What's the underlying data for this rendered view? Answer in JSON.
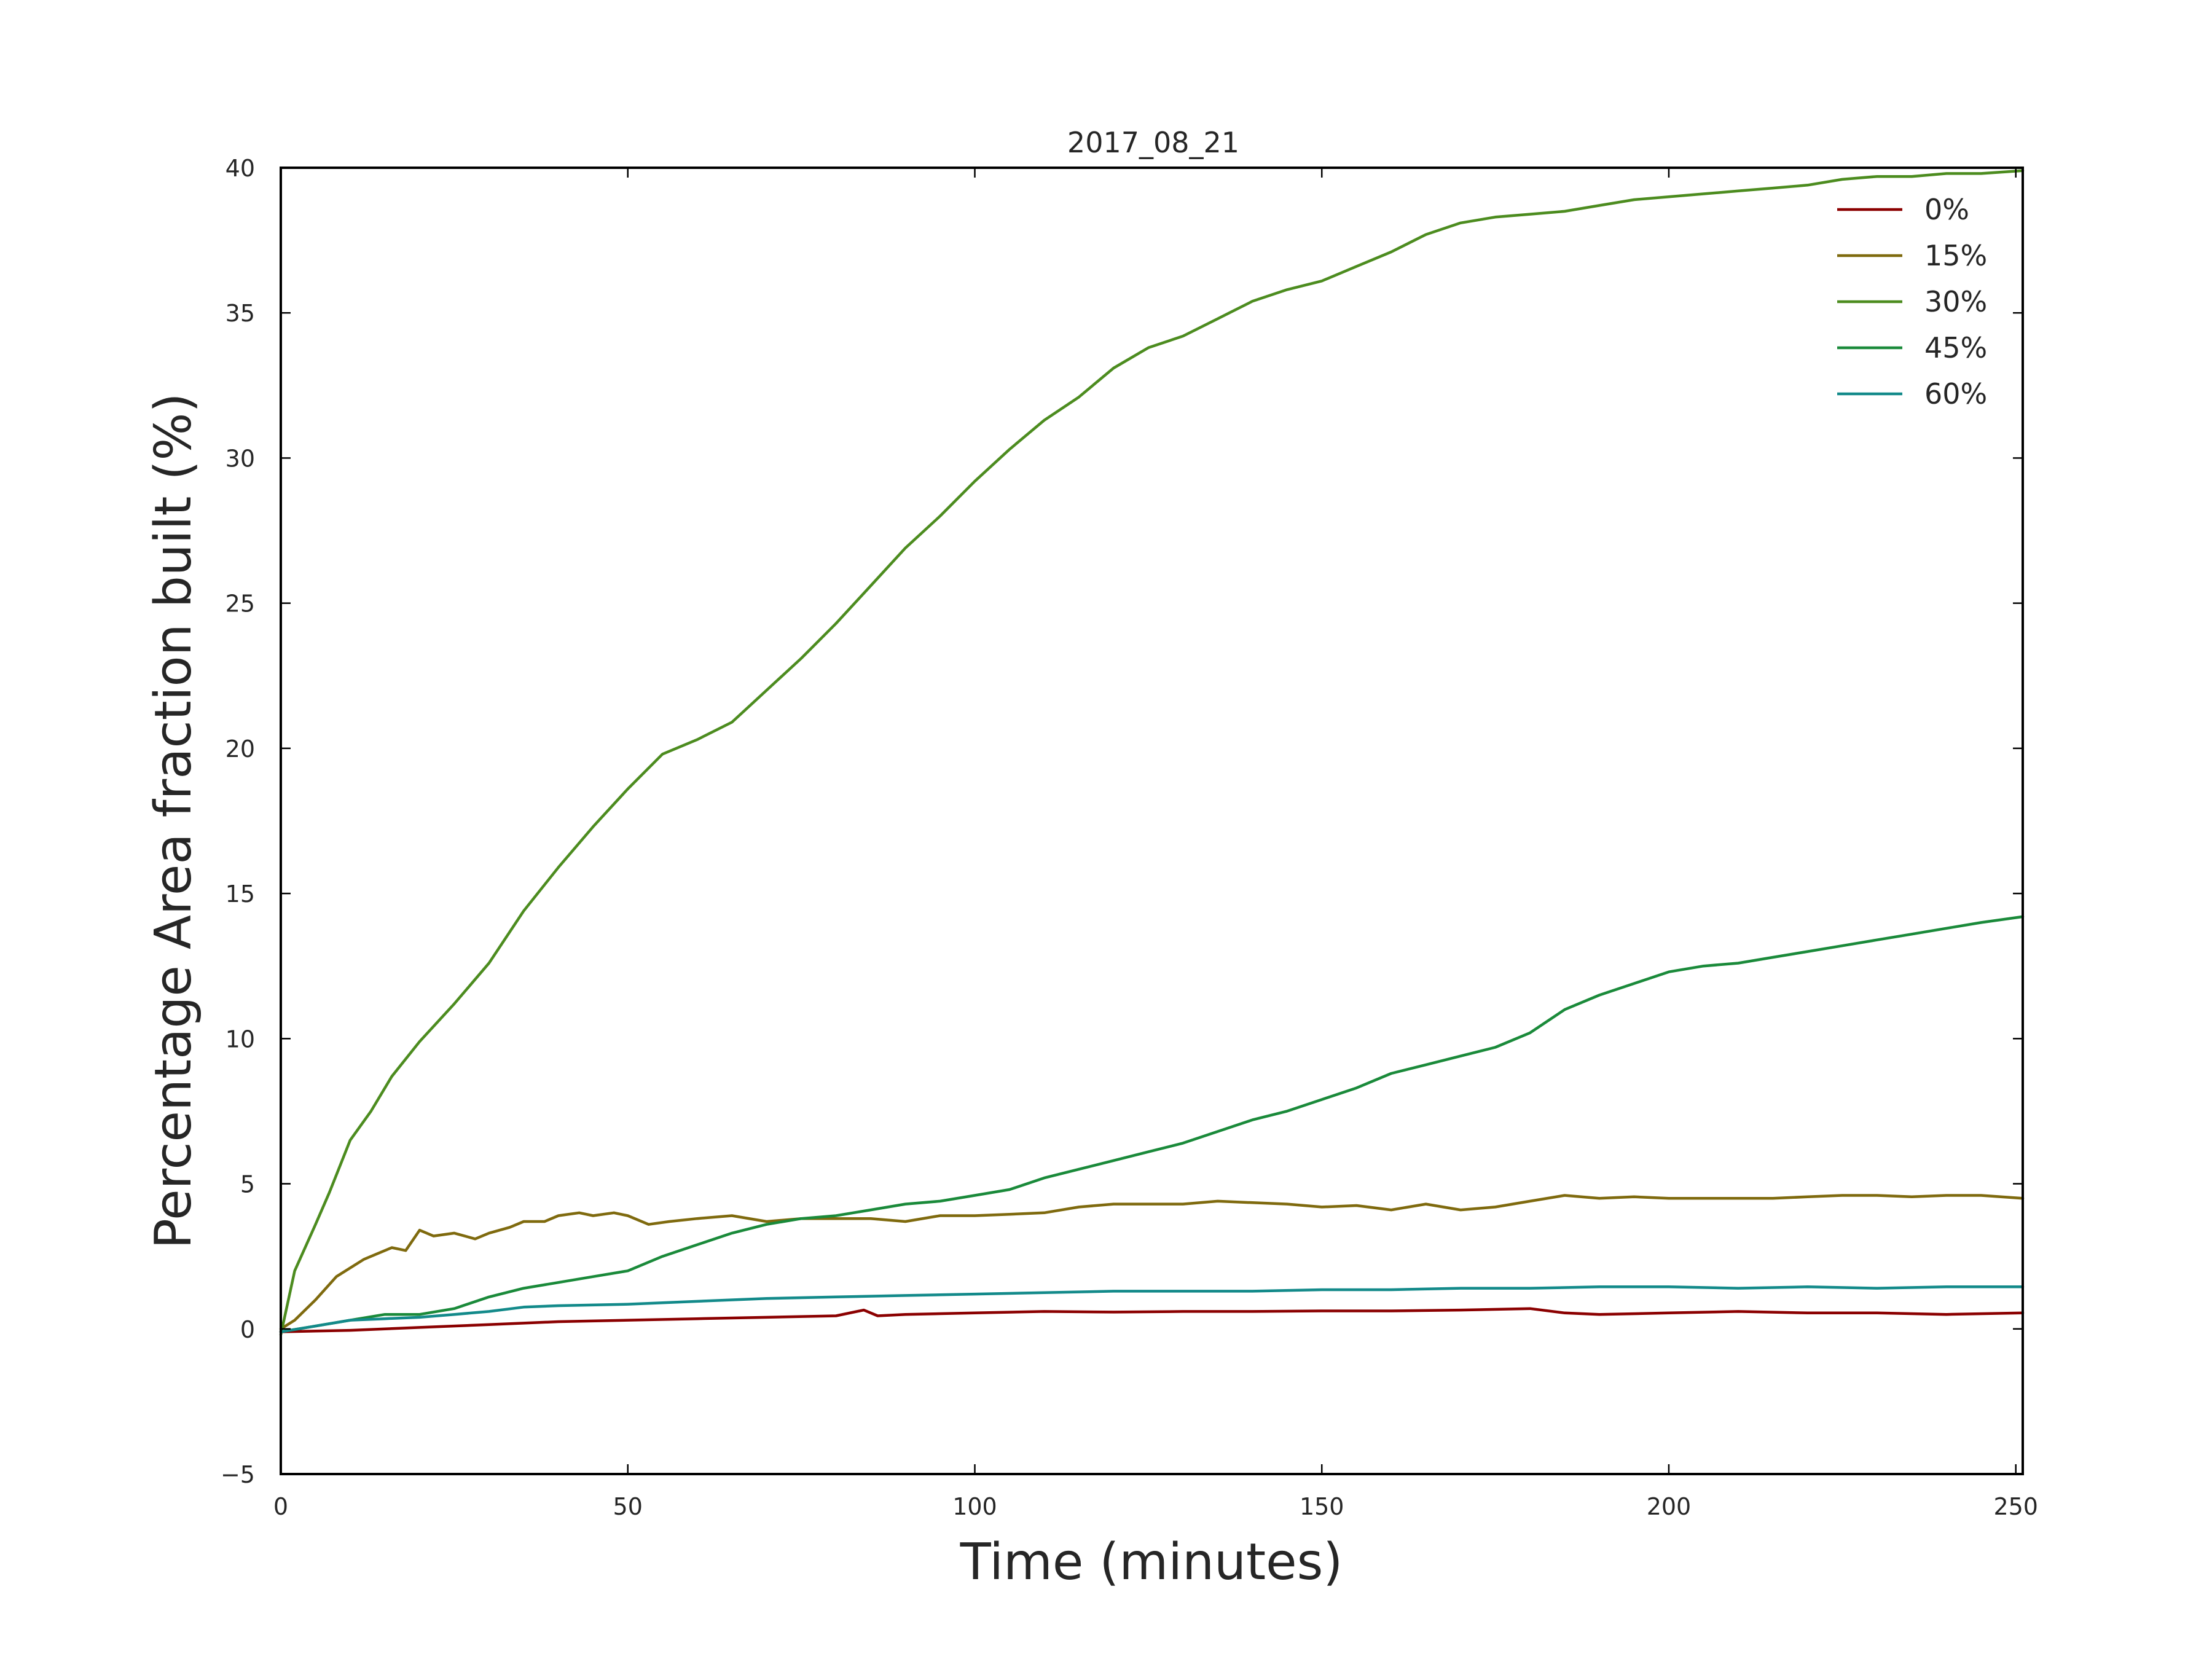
{
  "chart_data": {
    "type": "line",
    "title": "2017_08_21",
    "xlabel": "Time (minutes)",
    "ylabel": "Percentage Area fraction built (%)",
    "xlim": [
      0,
      251
    ],
    "ylim": [
      -5,
      40
    ],
    "xticks": [
      0,
      50,
      100,
      150,
      200,
      250
    ],
    "xtick_labels": [
      "0",
      "50",
      "100",
      "150",
      "200",
      "250"
    ],
    "yticks": [
      -5,
      0,
      5,
      10,
      15,
      20,
      25,
      30,
      35,
      40
    ],
    "ytick_labels": [
      "−5",
      "0",
      "5",
      "10",
      "15",
      "20",
      "25",
      "30",
      "35",
      "40"
    ],
    "grid": false,
    "legend_position": "top-right",
    "series": [
      {
        "name": "0%",
        "color": "#8b0000",
        "x": [
          0,
          10,
          20,
          30,
          40,
          50,
          60,
          70,
          80,
          84,
          86,
          90,
          100,
          110,
          120,
          130,
          140,
          150,
          160,
          170,
          180,
          185,
          190,
          200,
          210,
          220,
          230,
          240,
          251
        ],
        "y": [
          -0.1,
          -0.05,
          0.05,
          0.15,
          0.25,
          0.3,
          0.35,
          0.4,
          0.45,
          0.65,
          0.45,
          0.5,
          0.55,
          0.6,
          0.58,
          0.6,
          0.6,
          0.62,
          0.62,
          0.65,
          0.7,
          0.55,
          0.5,
          0.55,
          0.6,
          0.55,
          0.55,
          0.5,
          0.55
        ]
      },
      {
        "name": "15%",
        "color": "#7f6a0e",
        "x": [
          0,
          2,
          5,
          8,
          12,
          16,
          18,
          20,
          22,
          25,
          28,
          30,
          33,
          35,
          38,
          40,
          43,
          45,
          48,
          50,
          53,
          56,
          60,
          65,
          70,
          75,
          80,
          85,
          90,
          95,
          100,
          105,
          110,
          115,
          120,
          125,
          130,
          135,
          140,
          145,
          150,
          155,
          160,
          165,
          170,
          175,
          180,
          185,
          190,
          195,
          200,
          205,
          210,
          215,
          220,
          225,
          230,
          235,
          240,
          245,
          251
        ],
        "y": [
          0.0,
          0.3,
          1.0,
          1.8,
          2.4,
          2.8,
          2.7,
          3.4,
          3.2,
          3.3,
          3.1,
          3.3,
          3.5,
          3.7,
          3.7,
          3.9,
          4.0,
          3.9,
          4.0,
          3.9,
          3.6,
          3.7,
          3.8,
          3.9,
          3.7,
          3.8,
          3.8,
          3.8,
          3.7,
          3.9,
          3.9,
          3.95,
          4.0,
          4.2,
          4.3,
          4.3,
          4.3,
          4.4,
          4.35,
          4.3,
          4.2,
          4.25,
          4.1,
          4.3,
          4.1,
          4.2,
          4.4,
          4.6,
          4.5,
          4.55,
          4.5,
          4.5,
          4.5,
          4.5,
          4.55,
          4.6,
          4.6,
          4.55,
          4.6,
          4.6,
          4.5
        ]
      },
      {
        "name": "30%",
        "color": "#4c8c1f",
        "x": [
          0,
          2,
          5,
          7,
          10,
          13,
          16,
          20,
          25,
          30,
          35,
          40,
          45,
          50,
          55,
          60,
          65,
          70,
          75,
          80,
          85,
          90,
          95,
          100,
          105,
          110,
          115,
          120,
          125,
          130,
          135,
          140,
          145,
          150,
          155,
          160,
          165,
          170,
          175,
          180,
          185,
          190,
          195,
          200,
          205,
          210,
          215,
          220,
          225,
          230,
          235,
          240,
          245,
          251
        ],
        "y": [
          -0.2,
          2.0,
          3.6,
          4.7,
          6.5,
          7.5,
          8.7,
          9.9,
          11.2,
          12.6,
          14.4,
          15.9,
          17.3,
          18.6,
          19.8,
          20.3,
          20.9,
          22.0,
          23.1,
          24.3,
          25.6,
          26.9,
          28.0,
          29.2,
          30.3,
          31.3,
          32.1,
          33.1,
          33.8,
          34.2,
          34.8,
          35.4,
          35.8,
          36.1,
          36.6,
          37.1,
          37.7,
          38.1,
          38.3,
          38.4,
          38.5,
          38.7,
          38.9,
          39.0,
          39.1,
          39.2,
          39.3,
          39.4,
          39.6,
          39.7,
          39.7,
          39.8,
          39.8,
          39.9
        ]
      },
      {
        "name": "45%",
        "color": "#1a8a3a",
        "x": [
          0,
          5,
          10,
          15,
          20,
          25,
          30,
          35,
          40,
          45,
          50,
          55,
          60,
          65,
          70,
          75,
          80,
          85,
          90,
          95,
          100,
          105,
          110,
          115,
          120,
          125,
          130,
          135,
          140,
          145,
          150,
          155,
          160,
          165,
          170,
          175,
          180,
          185,
          190,
          195,
          200,
          205,
          210,
          215,
          220,
          225,
          230,
          235,
          240,
          245,
          251
        ],
        "y": [
          -0.1,
          0.1,
          0.3,
          0.5,
          0.5,
          0.7,
          1.1,
          1.4,
          1.6,
          1.8,
          2.0,
          2.5,
          2.9,
          3.3,
          3.6,
          3.8,
          3.9,
          4.1,
          4.3,
          4.4,
          4.6,
          4.8,
          5.2,
          5.5,
          5.8,
          6.1,
          6.4,
          6.8,
          7.2,
          7.5,
          7.9,
          8.3,
          8.8,
          9.1,
          9.4,
          9.7,
          10.2,
          11.0,
          11.5,
          11.9,
          12.3,
          12.5,
          12.6,
          12.8,
          13.0,
          13.2,
          13.4,
          13.6,
          13.8,
          14.0,
          14.2
        ]
      },
      {
        "name": "60%",
        "color": "#138a8a",
        "x": [
          0,
          5,
          10,
          15,
          20,
          25,
          30,
          35,
          40,
          50,
          60,
          70,
          80,
          90,
          100,
          110,
          120,
          130,
          140,
          150,
          160,
          170,
          180,
          190,
          200,
          210,
          220,
          230,
          240,
          251
        ],
        "y": [
          -0.1,
          0.1,
          0.3,
          0.35,
          0.4,
          0.5,
          0.6,
          0.75,
          0.8,
          0.85,
          0.95,
          1.05,
          1.1,
          1.15,
          1.2,
          1.25,
          1.3,
          1.3,
          1.3,
          1.35,
          1.35,
          1.4,
          1.4,
          1.45,
          1.45,
          1.4,
          1.45,
          1.4,
          1.45,
          1.45
        ]
      }
    ]
  }
}
